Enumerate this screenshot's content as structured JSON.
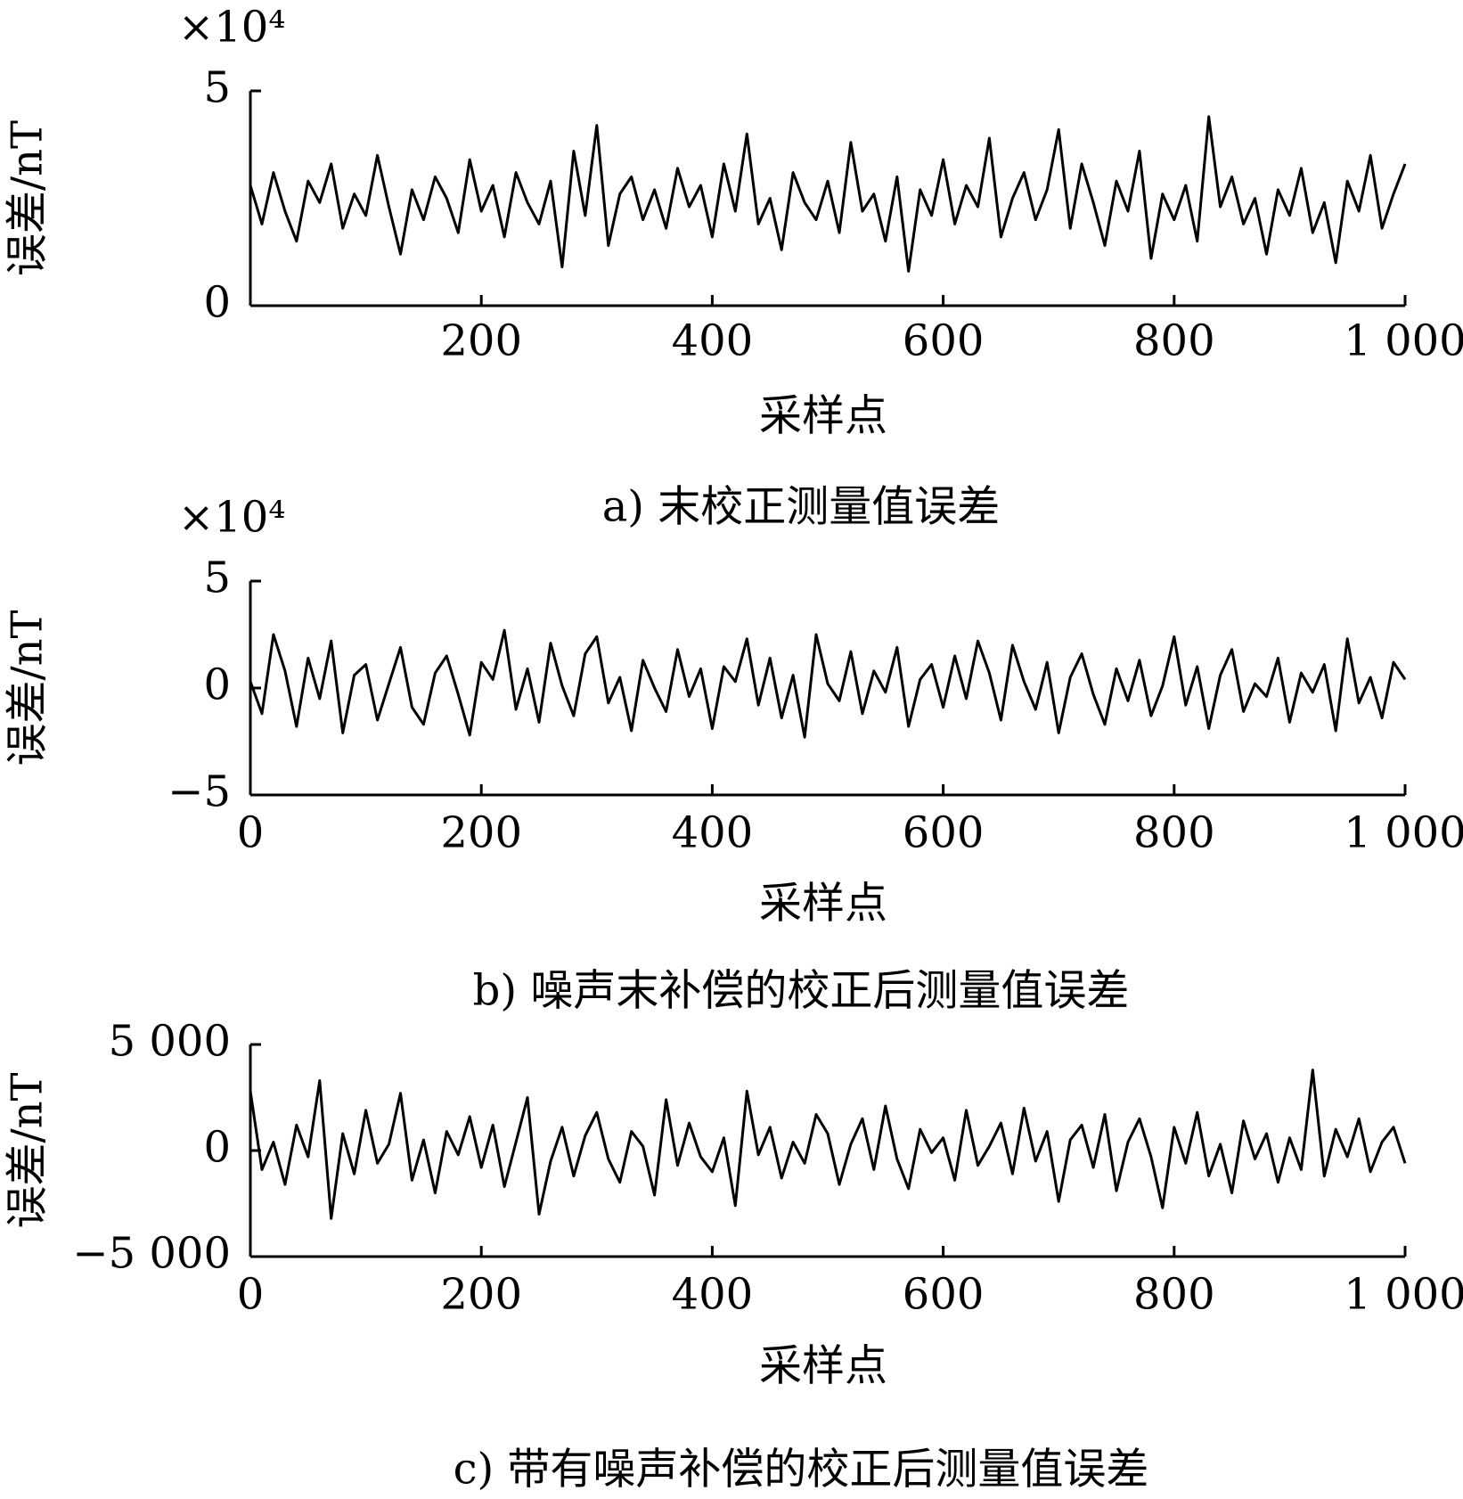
{
  "chart_data": [
    {
      "type": "line",
      "color": "#000000",
      "y_multiplier": "×10⁴",
      "ylabel": "误差/nT",
      "xlabel": "采样点",
      "caption": "a) 末校正测量值误差",
      "xlim": [
        0,
        1000
      ],
      "xticks": [
        200,
        400,
        600,
        800,
        {
          "value": 1000,
          "label": "1 000"
        }
      ],
      "ylim": [
        0,
        5
      ],
      "yticks": [
        0,
        5
      ],
      "x": [
        0,
        10,
        20,
        30,
        40,
        50,
        60,
        70,
        80,
        90,
        100,
        110,
        120,
        130,
        140,
        150,
        160,
        170,
        180,
        190,
        200,
        210,
        220,
        230,
        240,
        250,
        260,
        270,
        280,
        290,
        300,
        310,
        320,
        330,
        340,
        350,
        360,
        370,
        380,
        390,
        400,
        410,
        420,
        430,
        440,
        450,
        460,
        470,
        480,
        490,
        500,
        510,
        520,
        530,
        540,
        550,
        560,
        570,
        580,
        590,
        600,
        610,
        620,
        630,
        640,
        650,
        660,
        670,
        680,
        690,
        700,
        710,
        720,
        730,
        740,
        750,
        760,
        770,
        780,
        790,
        800,
        810,
        820,
        830,
        840,
        850,
        860,
        870,
        880,
        890,
        900,
        910,
        920,
        930,
        940,
        950,
        960,
        970,
        980,
        990,
        1000
      ],
      "values": [
        2.8,
        1.9,
        3.1,
        2.2,
        1.5,
        2.9,
        2.4,
        3.3,
        1.8,
        2.6,
        2.1,
        3.5,
        2.3,
        1.2,
        2.7,
        2.0,
        3.0,
        2.5,
        1.7,
        3.4,
        2.2,
        2.8,
        1.6,
        3.1,
        2.4,
        1.9,
        2.9,
        0.9,
        3.6,
        2.1,
        4.2,
        1.4,
        2.6,
        3.0,
        2.0,
        2.7,
        1.8,
        3.2,
        2.3,
        2.8,
        1.6,
        3.3,
        2.2,
        4.0,
        1.9,
        2.5,
        1.3,
        3.1,
        2.4,
        2.0,
        2.9,
        1.7,
        3.8,
        2.2,
        2.6,
        1.5,
        3.0,
        0.8,
        2.7,
        2.1,
        3.4,
        1.9,
        2.8,
        2.3,
        3.9,
        1.6,
        2.5,
        3.1,
        2.0,
        2.7,
        4.1,
        1.8,
        3.3,
        2.4,
        1.4,
        2.9,
        2.2,
        3.6,
        1.1,
        2.6,
        2.0,
        2.8,
        1.5,
        4.4,
        2.3,
        3.0,
        1.9,
        2.5,
        1.2,
        2.7,
        2.1,
        3.2,
        1.7,
        2.4,
        1.0,
        2.9,
        2.2,
        3.5,
        1.8,
        2.6,
        3.3
      ]
    },
    {
      "type": "line",
      "color": "#000000",
      "y_multiplier": "×10⁴",
      "ylabel": "误差/nT",
      "xlabel": "采样点",
      "caption": "b) 噪声末补偿的校正后测量值误差",
      "xlim": [
        0,
        1000
      ],
      "xticks": [
        0,
        200,
        400,
        600,
        800,
        {
          "value": 1000,
          "label": "1 000"
        }
      ],
      "ylim": [
        -5,
        5
      ],
      "yticks": [
        {
          "value": -5,
          "label": "−5"
        },
        0,
        5
      ],
      "x": [
        0,
        10,
        20,
        30,
        40,
        50,
        60,
        70,
        80,
        90,
        100,
        110,
        120,
        130,
        140,
        150,
        160,
        170,
        180,
        190,
        200,
        210,
        220,
        230,
        240,
        250,
        260,
        270,
        280,
        290,
        300,
        310,
        320,
        330,
        340,
        350,
        360,
        370,
        380,
        390,
        400,
        410,
        420,
        430,
        440,
        450,
        460,
        470,
        480,
        490,
        500,
        510,
        520,
        530,
        540,
        550,
        560,
        570,
        580,
        590,
        600,
        610,
        620,
        630,
        640,
        650,
        660,
        670,
        680,
        690,
        700,
        710,
        720,
        730,
        740,
        750,
        760,
        770,
        780,
        790,
        800,
        810,
        820,
        830,
        840,
        850,
        860,
        870,
        880,
        890,
        900,
        910,
        920,
        930,
        940,
        950,
        960,
        970,
        980,
        990,
        1000
      ],
      "values": [
        0.3,
        -1.2,
        2.5,
        0.8,
        -1.8,
        1.4,
        -0.5,
        2.2,
        -2.1,
        0.6,
        1.1,
        -1.5,
        0.2,
        1.9,
        -0.9,
        -1.7,
        0.7,
        1.5,
        -0.3,
        -2.2,
        1.2,
        0.4,
        2.7,
        -1.0,
        0.9,
        -1.6,
        2.1,
        0.1,
        -1.3,
        1.6,
        2.4,
        -0.7,
        0.5,
        -2.0,
        1.3,
        0.0,
        -1.1,
        1.8,
        -0.4,
        0.9,
        -1.9,
        1.0,
        0.3,
        2.3,
        -0.8,
        1.4,
        -1.4,
        0.6,
        -2.3,
        2.5,
        0.2,
        -0.6,
        1.7,
        -1.2,
        0.8,
        -0.2,
        1.9,
        -1.8,
        0.4,
        1.1,
        -0.9,
        1.5,
        -0.5,
        2.2,
        0.7,
        -1.5,
        2.0,
        0.3,
        -1.0,
        1.2,
        -2.1,
        0.5,
        1.6,
        -0.3,
        -1.7,
        0.9,
        -0.6,
        1.3,
        -1.3,
        0.1,
        2.4,
        -0.8,
        1.0,
        -1.9,
        0.6,
        1.8,
        -1.1,
        0.2,
        -0.4,
        1.4,
        -1.6,
        0.7,
        -0.2,
        1.1,
        -2.0,
        2.3,
        -0.7,
        0.5,
        -1.4,
        1.2,
        0.4
      ]
    },
    {
      "type": "line",
      "color": "#000000",
      "ylabel": "误差/nT",
      "xlabel": "采样点",
      "caption": "c) 带有噪声补偿的校正后测量值误差",
      "xlim": [
        0,
        1000
      ],
      "xticks": [
        0,
        200,
        400,
        600,
        800,
        {
          "value": 1000,
          "label": "1 000"
        }
      ],
      "ylim": [
        -5000,
        5000
      ],
      "yticks": [
        {
          "value": -5000,
          "label": "−5 000"
        },
        0,
        {
          "value": 5000,
          "label": "5 000"
        }
      ],
      "x": [
        0,
        10,
        20,
        30,
        40,
        50,
        60,
        70,
        80,
        90,
        100,
        110,
        120,
        130,
        140,
        150,
        160,
        170,
        180,
        190,
        200,
        210,
        220,
        230,
        240,
        250,
        260,
        270,
        280,
        290,
        300,
        310,
        320,
        330,
        340,
        350,
        360,
        370,
        380,
        390,
        400,
        410,
        420,
        430,
        440,
        450,
        460,
        470,
        480,
        490,
        500,
        510,
        520,
        530,
        540,
        550,
        560,
        570,
        580,
        590,
        600,
        610,
        620,
        630,
        640,
        650,
        660,
        670,
        680,
        690,
        700,
        710,
        720,
        730,
        740,
        750,
        760,
        770,
        780,
        790,
        800,
        810,
        820,
        830,
        840,
        850,
        860,
        870,
        880,
        890,
        900,
        910,
        920,
        930,
        940,
        950,
        960,
        970,
        980,
        990,
        1000
      ],
      "values": [
        2800,
        -900,
        400,
        -1600,
        1200,
        -300,
        3300,
        -3200,
        800,
        -1100,
        1900,
        -600,
        300,
        2700,
        -1400,
        500,
        -2000,
        900,
        -200,
        1600,
        -800,
        1200,
        -1700,
        400,
        2500,
        -3000,
        -500,
        1100,
        -1200,
        700,
        1800,
        -400,
        -1500,
        900,
        200,
        -2100,
        2400,
        -700,
        1300,
        -300,
        -1000,
        600,
        -2600,
        2800,
        -200,
        1100,
        -1300,
        400,
        -600,
        1700,
        800,
        -1600,
        300,
        1500,
        -900,
        2100,
        -400,
        -1800,
        1000,
        -100,
        600,
        -1400,
        1900,
        -700,
        200,
        1300,
        -1100,
        2000,
        -500,
        900,
        -2400,
        500,
        1200,
        -800,
        1700,
        -1900,
        400,
        1500,
        -300,
        -2700,
        1100,
        -600,
        1800,
        -1200,
        300,
        -2000,
        1400,
        -400,
        800,
        -1500,
        600,
        -900,
        3800,
        -1200,
        1000,
        -300,
        1500,
        -1000,
        400,
        1100,
        -600
      ]
    }
  ]
}
